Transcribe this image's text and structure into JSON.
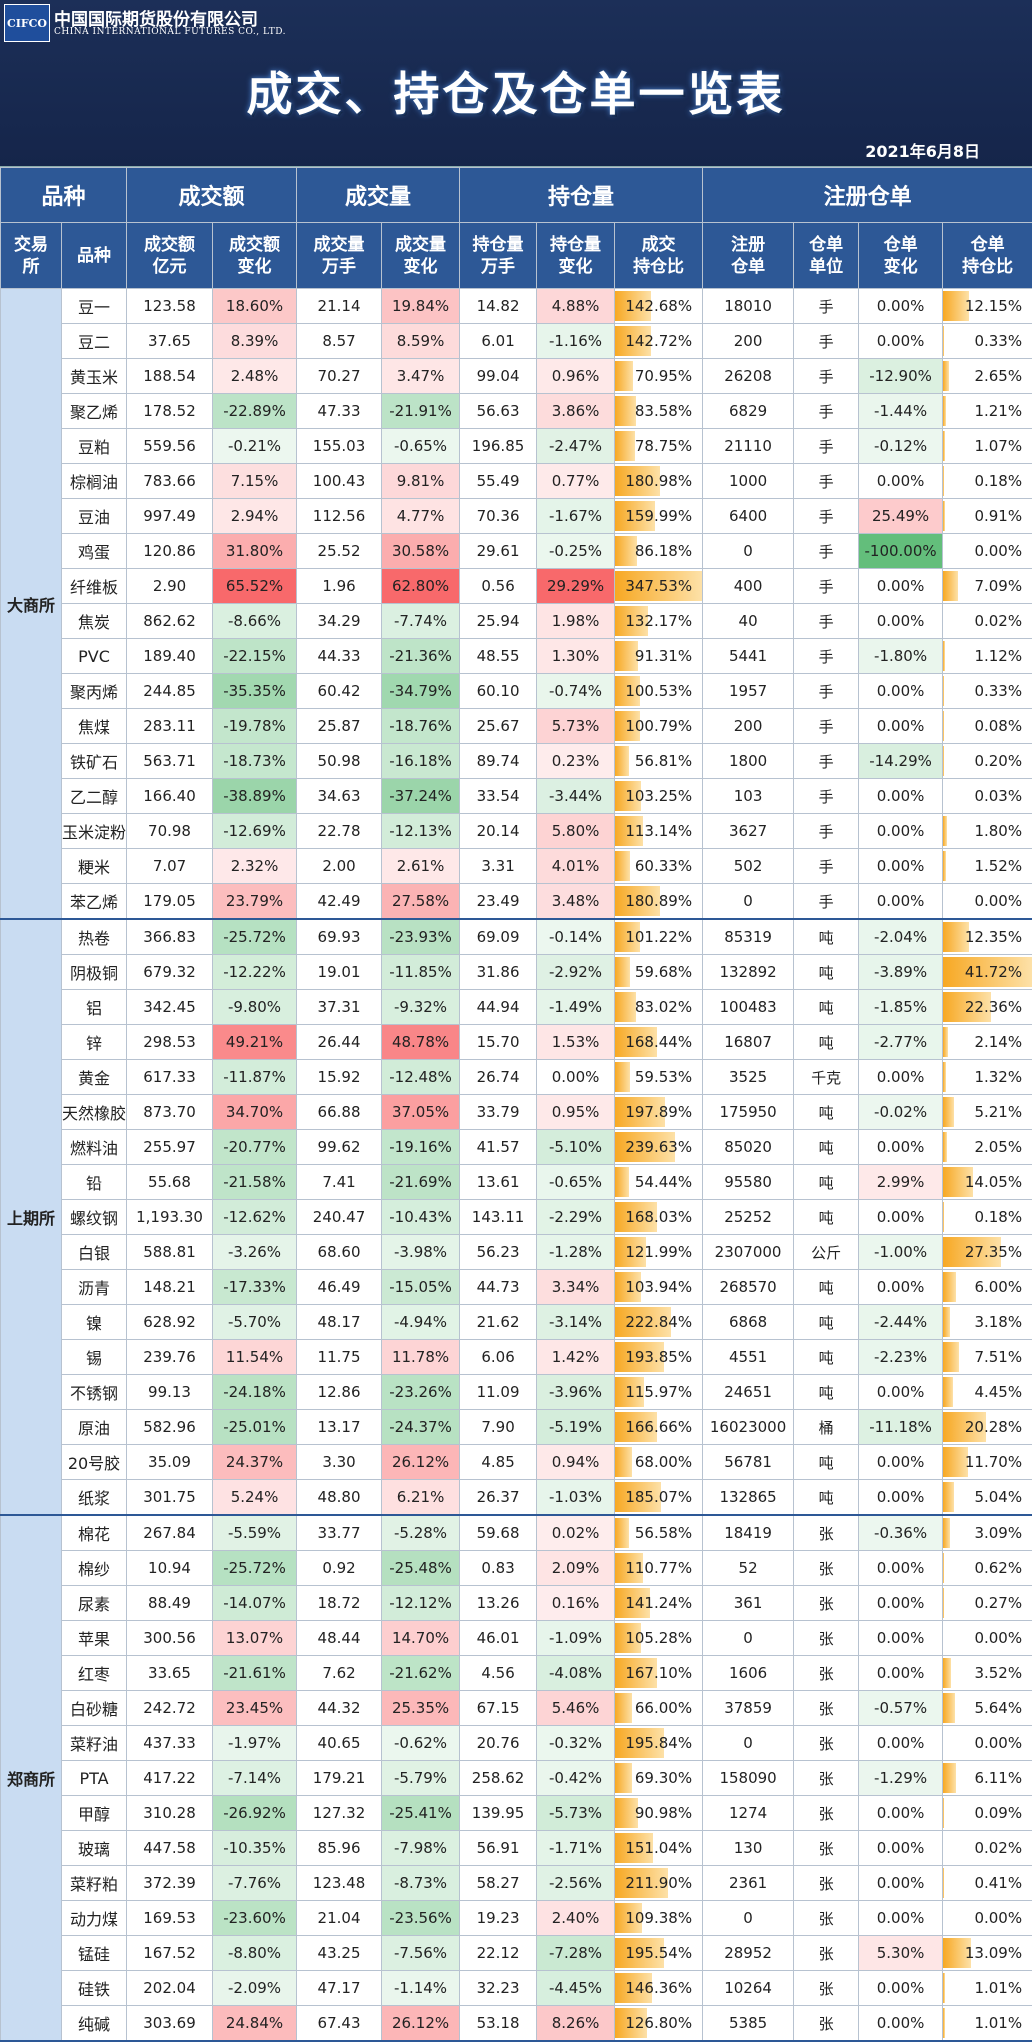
{
  "header": {
    "logo": "CIFCO",
    "company": "中国国际期货股份有限公司",
    "company_en": "CHINA INTERNATIONAL FUTURES CO., LTD.",
    "title": "成交、持仓及仓单一览表",
    "date": "2021年6月8日"
  },
  "table": {
    "group_headers": [
      "品种",
      "成交额",
      "成交量",
      "持仓量",
      "注册仓单"
    ],
    "columns": [
      "交易\n所",
      "品种",
      "成交额\n亿元",
      "成交额\n变化",
      "成交量\n万手",
      "成交量\n变化",
      "持仓量\n万手",
      "持仓量\n变化",
      "成交\n持仓比",
      "注册\n仓单",
      "仓单\n单位",
      "仓单\n变化",
      "仓单\n持仓比"
    ],
    "groups": [
      {
        "exchange": "大商所",
        "rows": [
          [
            "豆一",
            "123.58",
            "18.60%",
            "21.14",
            "19.84%",
            "14.82",
            "4.88%",
            "142.68%",
            "18010",
            "手",
            "0.00%",
            "12.15%"
          ],
          [
            "豆二",
            "37.65",
            "8.39%",
            "8.57",
            "8.59%",
            "6.01",
            "-1.16%",
            "142.72%",
            "200",
            "手",
            "0.00%",
            "0.33%"
          ],
          [
            "黄玉米",
            "188.54",
            "2.48%",
            "70.27",
            "3.47%",
            "99.04",
            "0.96%",
            "70.95%",
            "26208",
            "手",
            "-12.90%",
            "2.65%"
          ],
          [
            "聚乙烯",
            "178.52",
            "-22.89%",
            "47.33",
            "-21.91%",
            "56.63",
            "3.86%",
            "83.58%",
            "6829",
            "手",
            "-1.44%",
            "1.21%"
          ],
          [
            "豆粕",
            "559.56",
            "-0.21%",
            "155.03",
            "-0.65%",
            "196.85",
            "-2.47%",
            "78.75%",
            "21110",
            "手",
            "-0.12%",
            "1.07%"
          ],
          [
            "棕榈油",
            "783.66",
            "7.15%",
            "100.43",
            "9.81%",
            "55.49",
            "0.77%",
            "180.98%",
            "1000",
            "手",
            "0.00%",
            "0.18%"
          ],
          [
            "豆油",
            "997.49",
            "2.94%",
            "112.56",
            "4.77%",
            "70.36",
            "-1.67%",
            "159.99%",
            "6400",
            "手",
            "25.49%",
            "0.91%"
          ],
          [
            "鸡蛋",
            "120.86",
            "31.80%",
            "25.52",
            "30.58%",
            "29.61",
            "-0.25%",
            "86.18%",
            "0",
            "手",
            "-100.00%",
            "0.00%"
          ],
          [
            "纤维板",
            "2.90",
            "65.52%",
            "1.96",
            "62.80%",
            "0.56",
            "29.29%",
            "347.53%",
            "400",
            "手",
            "0.00%",
            "7.09%"
          ],
          [
            "焦炭",
            "862.62",
            "-8.66%",
            "34.29",
            "-7.74%",
            "25.94",
            "1.98%",
            "132.17%",
            "40",
            "手",
            "0.00%",
            "0.02%"
          ],
          [
            "PVC",
            "189.40",
            "-22.15%",
            "44.33",
            "-21.36%",
            "48.55",
            "1.30%",
            "91.31%",
            "5441",
            "手",
            "-1.80%",
            "1.12%"
          ],
          [
            "聚丙烯",
            "244.85",
            "-35.35%",
            "60.42",
            "-34.79%",
            "60.10",
            "-0.74%",
            "100.53%",
            "1957",
            "手",
            "0.00%",
            "0.33%"
          ],
          [
            "焦煤",
            "283.11",
            "-19.78%",
            "25.87",
            "-18.76%",
            "25.67",
            "5.73%",
            "100.79%",
            "200",
            "手",
            "0.00%",
            "0.08%"
          ],
          [
            "铁矿石",
            "563.71",
            "-18.73%",
            "50.98",
            "-16.18%",
            "89.74",
            "0.23%",
            "56.81%",
            "1800",
            "手",
            "-14.29%",
            "0.20%"
          ],
          [
            "乙二醇",
            "166.40",
            "-38.89%",
            "34.63",
            "-37.24%",
            "33.54",
            "-3.44%",
            "103.25%",
            "103",
            "手",
            "0.00%",
            "0.03%"
          ],
          [
            "玉米淀粉",
            "70.98",
            "-12.69%",
            "22.78",
            "-12.13%",
            "20.14",
            "5.80%",
            "113.14%",
            "3627",
            "手",
            "0.00%",
            "1.80%"
          ],
          [
            "粳米",
            "7.07",
            "2.32%",
            "2.00",
            "2.61%",
            "3.31",
            "4.01%",
            "60.33%",
            "502",
            "手",
            "0.00%",
            "1.52%"
          ],
          [
            "苯乙烯",
            "179.05",
            "23.79%",
            "42.49",
            "27.58%",
            "23.49",
            "3.48%",
            "180.89%",
            "0",
            "手",
            "0.00%",
            "0.00%"
          ]
        ]
      },
      {
        "exchange": "上期所",
        "rows": [
          [
            "热卷",
            "366.83",
            "-25.72%",
            "69.93",
            "-23.93%",
            "69.09",
            "-0.14%",
            "101.22%",
            "85319",
            "吨",
            "-2.04%",
            "12.35%"
          ],
          [
            "阴极铜",
            "679.32",
            "-12.22%",
            "19.01",
            "-11.85%",
            "31.86",
            "-2.92%",
            "59.68%",
            "132892",
            "吨",
            "-3.89%",
            "41.72%"
          ],
          [
            "铝",
            "342.45",
            "-9.80%",
            "37.31",
            "-9.32%",
            "44.94",
            "-1.49%",
            "83.02%",
            "100483",
            "吨",
            "-1.85%",
            "22.36%"
          ],
          [
            "锌",
            "298.53",
            "49.21%",
            "26.44",
            "48.78%",
            "15.70",
            "1.53%",
            "168.44%",
            "16807",
            "吨",
            "-2.77%",
            "2.14%"
          ],
          [
            "黄金",
            "617.33",
            "-11.87%",
            "15.92",
            "-12.48%",
            "26.74",
            "0.00%",
            "59.53%",
            "3525",
            "千克",
            "0.00%",
            "1.32%"
          ],
          [
            "天然橡胶",
            "873.70",
            "34.70%",
            "66.88",
            "37.05%",
            "33.79",
            "0.95%",
            "197.89%",
            "175950",
            "吨",
            "-0.02%",
            "5.21%"
          ],
          [
            "燃料油",
            "255.97",
            "-20.77%",
            "99.62",
            "-19.16%",
            "41.57",
            "-5.10%",
            "239.63%",
            "85020",
            "吨",
            "0.00%",
            "2.05%"
          ],
          [
            "铅",
            "55.68",
            "-21.58%",
            "7.41",
            "-21.69%",
            "13.61",
            "-0.65%",
            "54.44%",
            "95580",
            "吨",
            "2.99%",
            "14.05%"
          ],
          [
            "螺纹钢",
            "1,193.30",
            "-12.62%",
            "240.47",
            "-10.43%",
            "143.11",
            "-2.29%",
            "168.03%",
            "25252",
            "吨",
            "0.00%",
            "0.18%"
          ],
          [
            "白银",
            "588.81",
            "-3.26%",
            "68.60",
            "-3.98%",
            "56.23",
            "-1.28%",
            "121.99%",
            "2307000",
            "公斤",
            "-1.00%",
            "27.35%"
          ],
          [
            "沥青",
            "148.21",
            "-17.33%",
            "46.49",
            "-15.05%",
            "44.73",
            "3.34%",
            "103.94%",
            "268570",
            "吨",
            "0.00%",
            "6.00%"
          ],
          [
            "镍",
            "628.92",
            "-5.70%",
            "48.17",
            "-4.94%",
            "21.62",
            "-3.14%",
            "222.84%",
            "6868",
            "吨",
            "-2.44%",
            "3.18%"
          ],
          [
            "锡",
            "239.76",
            "11.54%",
            "11.75",
            "11.78%",
            "6.06",
            "1.42%",
            "193.85%",
            "4551",
            "吨",
            "-2.23%",
            "7.51%"
          ],
          [
            "不锈钢",
            "99.13",
            "-24.18%",
            "12.86",
            "-23.26%",
            "11.09",
            "-3.96%",
            "115.97%",
            "24651",
            "吨",
            "0.00%",
            "4.45%"
          ],
          [
            "原油",
            "582.96",
            "-25.01%",
            "13.17",
            "-24.37%",
            "7.90",
            "-5.19%",
            "166.66%",
            "16023000",
            "桶",
            "-11.18%",
            "20.28%"
          ],
          [
            "20号胶",
            "35.09",
            "24.37%",
            "3.30",
            "26.12%",
            "4.85",
            "0.94%",
            "68.00%",
            "56781",
            "吨",
            "0.00%",
            "11.70%"
          ],
          [
            "纸浆",
            "301.75",
            "5.24%",
            "48.80",
            "6.21%",
            "26.37",
            "-1.03%",
            "185.07%",
            "132865",
            "吨",
            "0.00%",
            "5.04%"
          ]
        ]
      },
      {
        "exchange": "郑商所",
        "rows": [
          [
            "棉花",
            "267.84",
            "-5.59%",
            "33.77",
            "-5.28%",
            "59.68",
            "0.02%",
            "56.58%",
            "18419",
            "张",
            "-0.36%",
            "3.09%"
          ],
          [
            "棉纱",
            "10.94",
            "-25.72%",
            "0.92",
            "-25.48%",
            "0.83",
            "2.09%",
            "110.77%",
            "52",
            "张",
            "0.00%",
            "0.62%"
          ],
          [
            "尿素",
            "88.49",
            "-14.07%",
            "18.72",
            "-12.12%",
            "13.26",
            "0.16%",
            "141.24%",
            "361",
            "张",
            "0.00%",
            "0.27%"
          ],
          [
            "苹果",
            "300.56",
            "13.07%",
            "48.44",
            "14.70%",
            "46.01",
            "-1.09%",
            "105.28%",
            "0",
            "张",
            "0.00%",
            "0.00%"
          ],
          [
            "红枣",
            "33.65",
            "-21.61%",
            "7.62",
            "-21.62%",
            "4.56",
            "-4.08%",
            "167.10%",
            "1606",
            "张",
            "0.00%",
            "3.52%"
          ],
          [
            "白砂糖",
            "242.72",
            "23.45%",
            "44.32",
            "25.35%",
            "67.15",
            "5.46%",
            "66.00%",
            "37859",
            "张",
            "-0.57%",
            "5.64%"
          ],
          [
            "菜籽油",
            "437.33",
            "-1.97%",
            "40.65",
            "-0.62%",
            "20.76",
            "-0.32%",
            "195.84%",
            "0",
            "张",
            "0.00%",
            "0.00%"
          ],
          [
            "PTA",
            "417.22",
            "-7.14%",
            "179.21",
            "-5.79%",
            "258.62",
            "-0.42%",
            "69.30%",
            "158090",
            "张",
            "-1.29%",
            "6.11%"
          ],
          [
            "甲醇",
            "310.28",
            "-26.92%",
            "127.32",
            "-25.41%",
            "139.95",
            "-5.73%",
            "90.98%",
            "1274",
            "张",
            "0.00%",
            "0.09%"
          ],
          [
            "玻璃",
            "447.58",
            "-10.35%",
            "85.96",
            "-7.98%",
            "56.91",
            "-1.71%",
            "151.04%",
            "130",
            "张",
            "0.00%",
            "0.02%"
          ],
          [
            "菜籽粕",
            "372.39",
            "-7.76%",
            "123.48",
            "-8.73%",
            "58.27",
            "-2.56%",
            "211.90%",
            "2361",
            "张",
            "0.00%",
            "0.41%"
          ],
          [
            "动力煤",
            "169.53",
            "-23.60%",
            "21.04",
            "-23.56%",
            "19.23",
            "2.40%",
            "109.38%",
            "0",
            "张",
            "0.00%",
            "0.00%"
          ],
          [
            "锰硅",
            "167.52",
            "-8.80%",
            "43.25",
            "-7.56%",
            "22.12",
            "-7.28%",
            "195.54%",
            "28952",
            "张",
            "5.30%",
            "13.09%"
          ],
          [
            "硅铁",
            "202.04",
            "-2.09%",
            "47.17",
            "-1.14%",
            "32.23",
            "-4.45%",
            "146.36%",
            "10264",
            "张",
            "0.00%",
            "1.01%"
          ],
          [
            "纯碱",
            "303.69",
            "24.84%",
            "67.43",
            "26.12%",
            "53.18",
            "8.26%",
            "126.80%",
            "5385",
            "张",
            "0.00%",
            "1.01%"
          ]
        ]
      }
    ]
  }
}
